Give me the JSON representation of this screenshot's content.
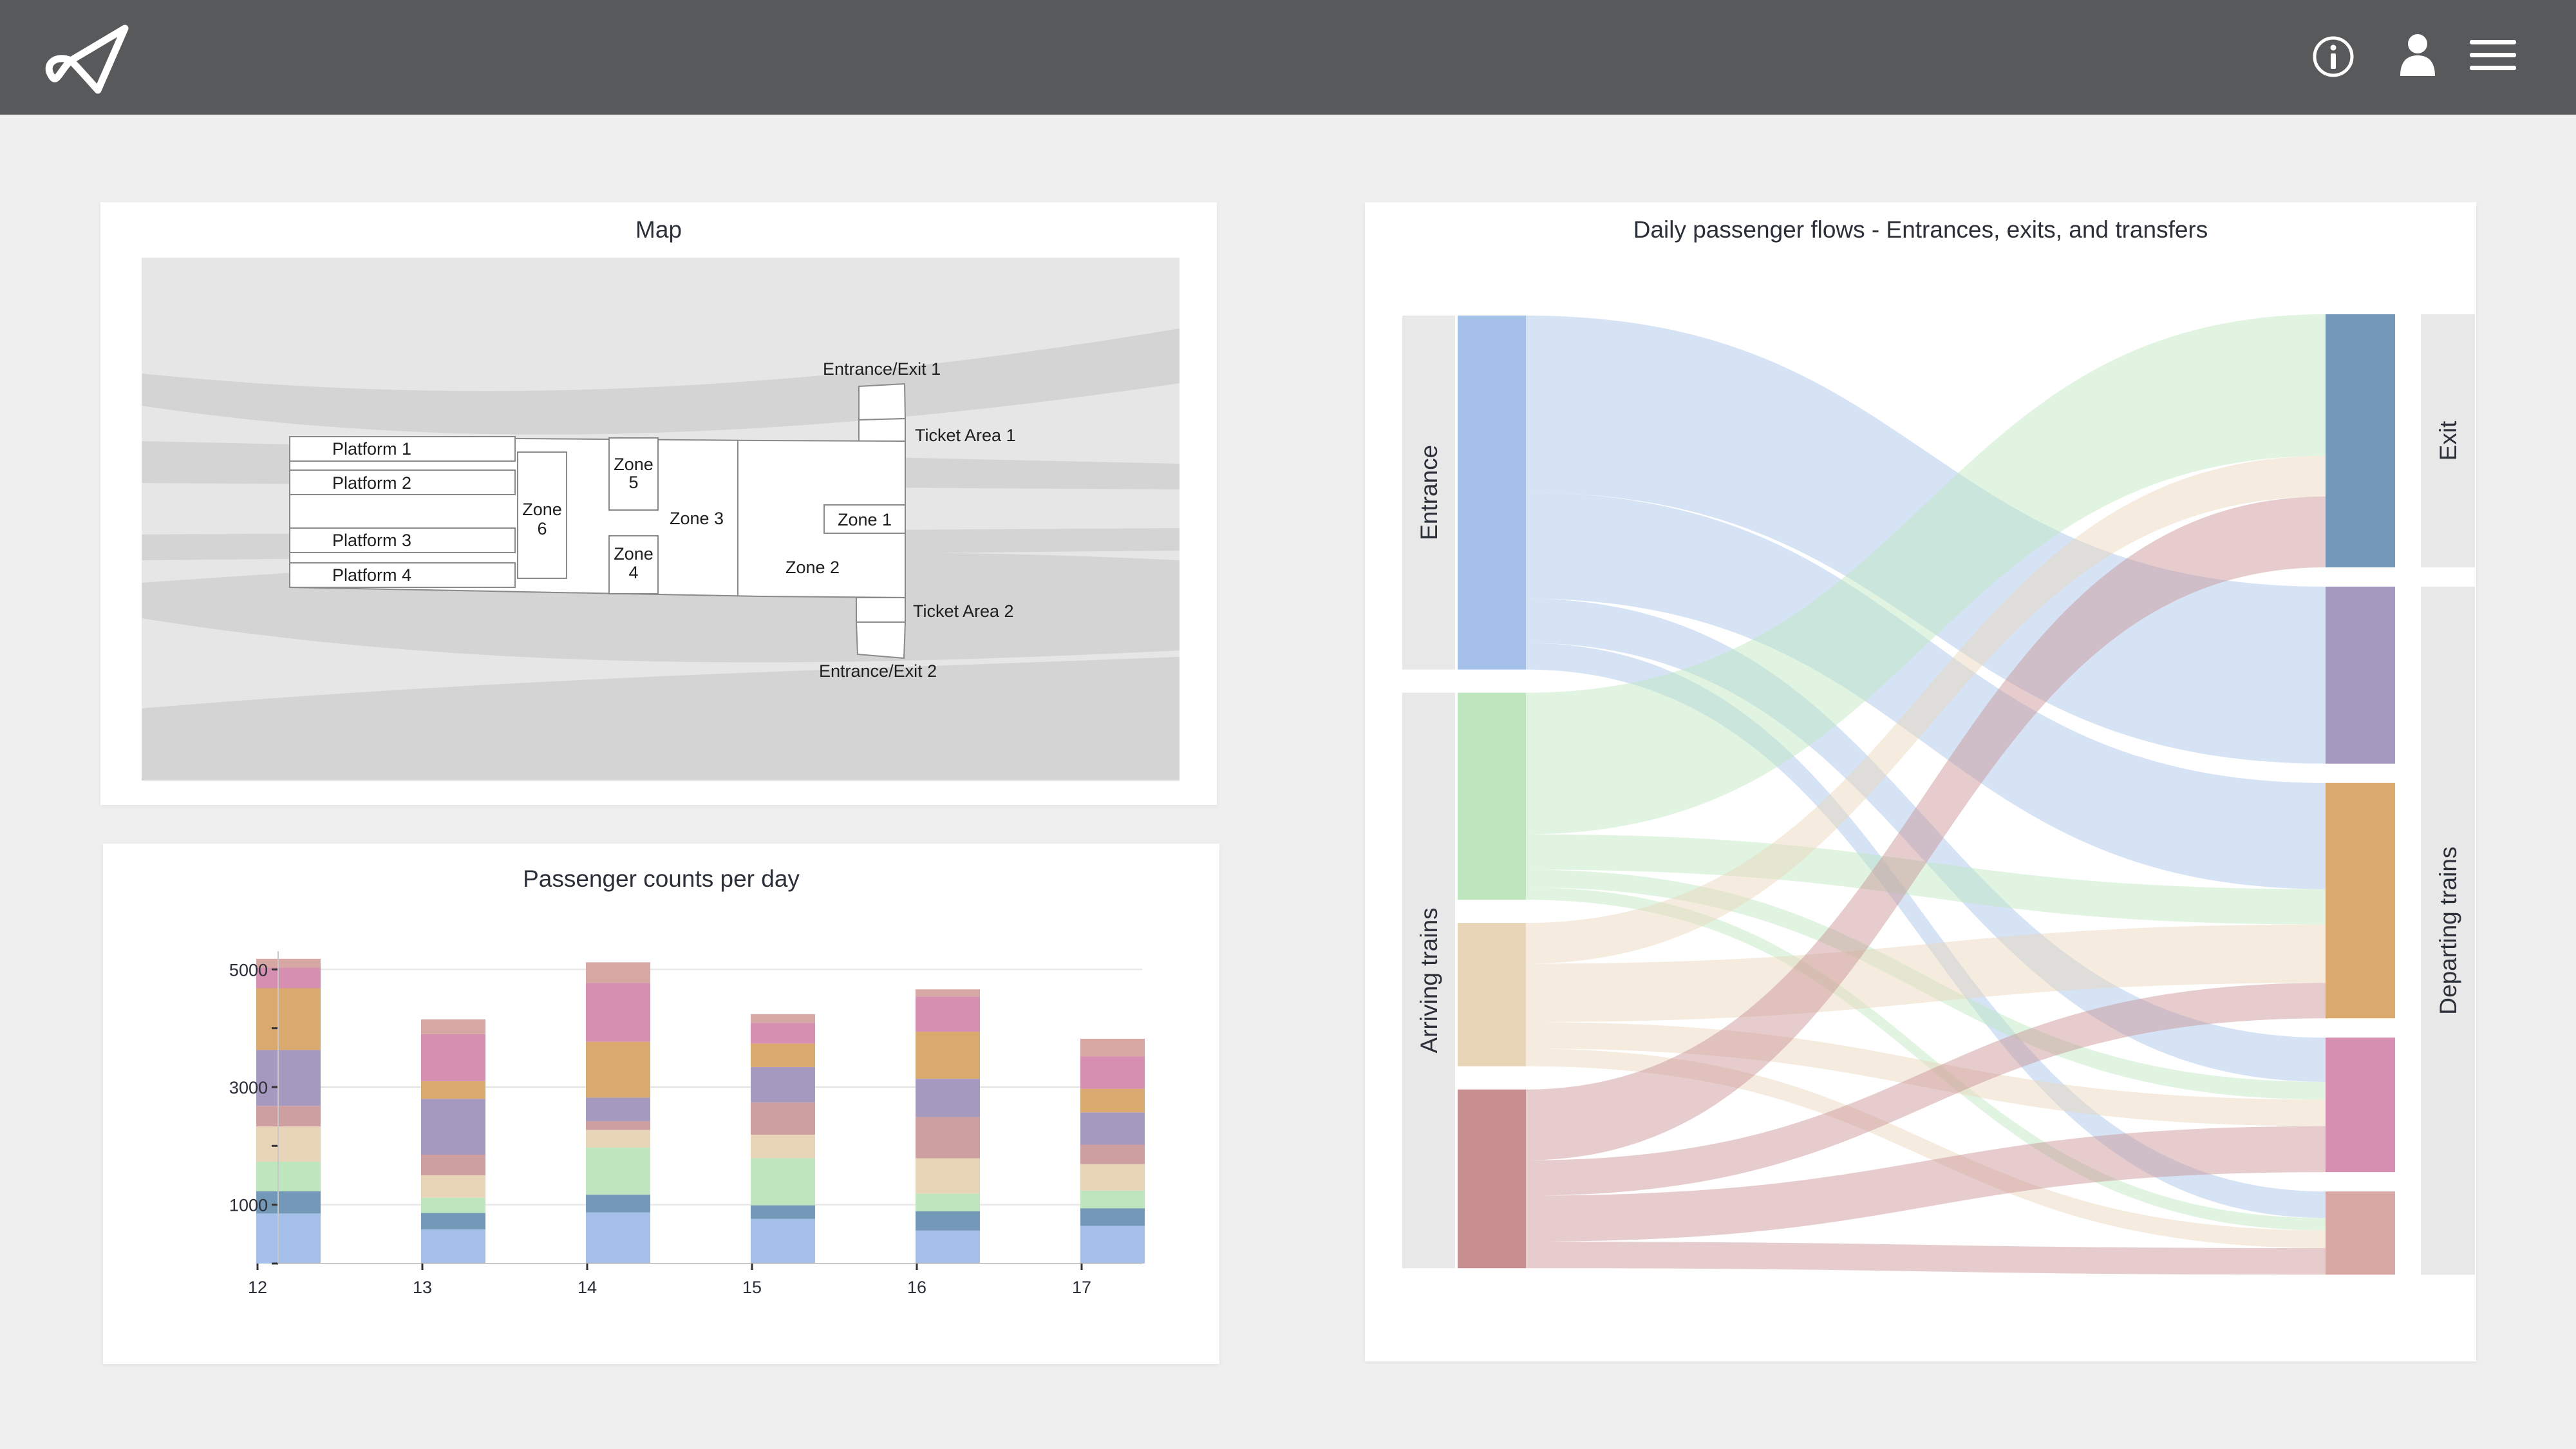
{
  "app": {
    "logo_icon": "paper-plane-logo-icon",
    "header_icons": [
      "info-icon",
      "user-icon",
      "hamburger-menu-icon"
    ]
  },
  "map": {
    "title": "Map",
    "labels": {
      "platform_1": "Platform 1",
      "platform_2": "Platform 2",
      "platform_3": "Platform 3",
      "platform_4": "Platform 4",
      "zone_1": "Zone 1",
      "zone_2": "Zone 2",
      "zone_3": "Zone 3",
      "zone_4_a": "Zone",
      "zone_4_b": "4",
      "zone_5_a": "Zone",
      "zone_5_b": "5",
      "zone_6_a": "Zone",
      "zone_6_b": "6",
      "entrance_exit_1": "Entrance/Exit 1",
      "entrance_exit_2": "Entrance/Exit 2",
      "ticket_area_1": "Ticket Area 1",
      "ticket_area_2": "Ticket Area 2"
    }
  },
  "chart_data": [
    {
      "type": "bar",
      "stacked": true,
      "title": "Passenger counts per day",
      "categories": [
        "12",
        "13",
        "14",
        "15",
        "16",
        "17"
      ],
      "yticks": [
        "5000",
        "3000",
        "1000"
      ],
      "ytick_values": [
        5000,
        3000,
        1000
      ],
      "ylim": [
        0,
        5200
      ],
      "grid": true,
      "series": [
        {
          "color": "#a5c0e8",
          "values": [
            850,
            580,
            870,
            760,
            560,
            640
          ]
        },
        {
          "color": "#7499b8",
          "values": [
            380,
            280,
            300,
            230,
            330,
            300
          ]
        },
        {
          "color": "#bde6be",
          "values": [
            500,
            260,
            800,
            800,
            300,
            300
          ]
        },
        {
          "color": "#e8d5b8",
          "values": [
            600,
            380,
            300,
            400,
            600,
            450
          ]
        },
        {
          "color": "#cd9fa0",
          "values": [
            350,
            350,
            150,
            550,
            700,
            330
          ]
        },
        {
          "color": "#a699bf",
          "values": [
            950,
            950,
            400,
            600,
            650,
            550
          ]
        },
        {
          "color": "#d9a96d",
          "values": [
            1050,
            300,
            950,
            400,
            800,
            400
          ]
        },
        {
          "color": "#d68fb1",
          "values": [
            350,
            800,
            1000,
            350,
            600,
            550
          ]
        },
        {
          "color": "#d7a8a3",
          "values": [
            150,
            250,
            350,
            150,
            120,
            300
          ]
        }
      ]
    },
    {
      "type": "sankey",
      "title": "Daily passenger flows - Entrances, exits, and transfers",
      "group_labels": {
        "entrance": "Entrance",
        "arriving": "Arriving trains",
        "exit": "Exit",
        "departing": "Departing trains"
      },
      "sources": [
        {
          "id": "s1",
          "group": "entrance",
          "color": "#a5c0e8",
          "value": 2000
        },
        {
          "id": "s2",
          "group": "arriving",
          "color": "#bde6be",
          "value": 1170
        },
        {
          "id": "s3",
          "group": "arriving",
          "color": "#e8d5b8",
          "value": 810
        },
        {
          "id": "s4",
          "group": "arriving",
          "color": "#c78f90",
          "value": 1010
        }
      ],
      "targets": [
        {
          "id": "t1",
          "group": "exit",
          "color": "#7499b8",
          "value": 1430
        },
        {
          "id": "t2",
          "group": "departing",
          "color": "#a699bf",
          "value": 1000
        },
        {
          "id": "t3",
          "group": "departing",
          "color": "#d9a96d",
          "value": 1330
        },
        {
          "id": "t4",
          "group": "departing",
          "color": "#d68fb1",
          "value": 760
        },
        {
          "id": "t5",
          "group": "departing",
          "color": "#d7a8a3",
          "value": 470
        }
      ],
      "links": [
        {
          "source": "s1",
          "target": "t2",
          "value": 1000
        },
        {
          "source": "s1",
          "target": "t3",
          "value": 600
        },
        {
          "source": "s1",
          "target": "t4",
          "value": 250
        },
        {
          "source": "s1",
          "target": "t5",
          "value": 150
        },
        {
          "source": "s2",
          "target": "t1",
          "value": 800
        },
        {
          "source": "s2",
          "target": "t3",
          "value": 200
        },
        {
          "source": "s2",
          "target": "t4",
          "value": 100
        },
        {
          "source": "s2",
          "target": "t5",
          "value": 70
        },
        {
          "source": "s3",
          "target": "t1",
          "value": 230
        },
        {
          "source": "s3",
          "target": "t3",
          "value": 330
        },
        {
          "source": "s3",
          "target": "t4",
          "value": 150
        },
        {
          "source": "s3",
          "target": "t5",
          "value": 100
        },
        {
          "source": "s4",
          "target": "t1",
          "value": 400
        },
        {
          "source": "s4",
          "target": "t3",
          "value": 200
        },
        {
          "source": "s4",
          "target": "t4",
          "value": 260
        },
        {
          "source": "s4",
          "target": "t5",
          "value": 150
        }
      ]
    }
  ]
}
